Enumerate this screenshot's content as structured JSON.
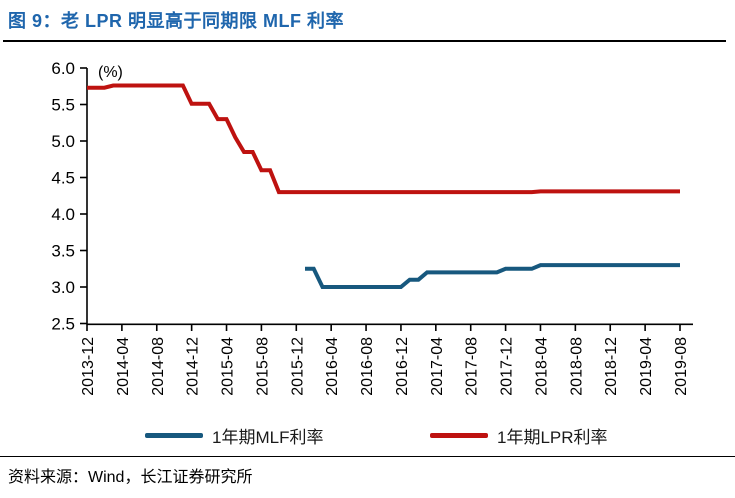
{
  "figure": {
    "title": "图 9：老 LPR 明显高于同期限 MLF 利率",
    "source": "资料来源：Wind，长江证券研究所"
  },
  "colors": {
    "title_blue": "#1F66AD",
    "mlf_blue": "#17587E",
    "lpr_red": "#BE1210",
    "axis_black": "#000000"
  },
  "legend": [
    {
      "label": "1年期MLF利率",
      "color_key": "mlf_blue"
    },
    {
      "label": "1年期LPR利率",
      "color_key": "lpr_red"
    }
  ],
  "chart_data": {
    "type": "line",
    "unit_label": "(%)",
    "ylim": [
      2.5,
      6.0
    ],
    "y_ticks": [
      6.0,
      5.5,
      5.0,
      4.5,
      4.0,
      3.5,
      3.0,
      2.5
    ],
    "x_start": "2013-12",
    "x_end": "2019-08",
    "x_tick_interval_months": 4,
    "x_tick_labels": [
      "2013-12",
      "2014-04",
      "2014-08",
      "2014-12",
      "2015-04",
      "2015-08",
      "2015-12",
      "2016-04",
      "2016-08",
      "2016-12",
      "2017-04",
      "2017-08",
      "2017-12",
      "2018-04",
      "2018-08",
      "2018-12",
      "2019-04",
      "2019-08"
    ],
    "grid": false,
    "legend_position": "bottom",
    "series": [
      {
        "name": "1年期MLF利率",
        "color_key": "mlf_blue",
        "segments": [
          {
            "from": "2016-01",
            "to": "2016-02",
            "value": 3.25
          },
          {
            "from": "2016-03",
            "to": "2016-12",
            "value": 3.0
          },
          {
            "from": "2017-01",
            "to": "2017-02",
            "value": 3.1
          },
          {
            "from": "2017-03",
            "to": "2017-11",
            "value": 3.2
          },
          {
            "from": "2017-12",
            "to": "2018-03",
            "value": 3.25
          },
          {
            "from": "2018-04",
            "to": "2019-08",
            "value": 3.3
          }
        ]
      },
      {
        "name": "1年期LPR利率",
        "color_key": "lpr_red",
        "segments": [
          {
            "from": "2013-12",
            "to": "2014-02",
            "value": 5.73
          },
          {
            "from": "2014-03",
            "to": "2014-11",
            "value": 5.76
          },
          {
            "from": "2014-12",
            "to": "2015-02",
            "value": 5.51
          },
          {
            "from": "2015-03",
            "to": "2015-04",
            "value": 5.3
          },
          {
            "from": "2015-05",
            "to": "2015-05",
            "value": 5.05
          },
          {
            "from": "2015-06",
            "to": "2015-07",
            "value": 4.85
          },
          {
            "from": "2015-08",
            "to": "2015-09",
            "value": 4.6
          },
          {
            "from": "2015-10",
            "to": "2018-03",
            "value": 4.3
          },
          {
            "from": "2018-04",
            "to": "2019-08",
            "value": 4.31
          }
        ]
      }
    ]
  }
}
